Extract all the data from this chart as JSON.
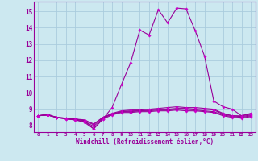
{
  "title": "Windchill (Refroidissement éolien,°C)",
  "bg_color": "#cce8f0",
  "grid_color": "#aaccdd",
  "line_color": "#990099",
  "marker_color": "#cc00cc",
  "ylim": [
    7.6,
    15.6
  ],
  "xlim": [
    -0.5,
    23.5
  ],
  "yticks": [
    8,
    9,
    10,
    11,
    12,
    13,
    14,
    15
  ],
  "xtick_labels": [
    "0",
    "1",
    "2",
    "3",
    "4",
    "5",
    "6",
    "7",
    "8",
    "9",
    "10",
    "11",
    "12",
    "13",
    "14",
    "15",
    "16",
    "17",
    "18",
    "19",
    "20",
    "21",
    "22",
    "23"
  ],
  "series": [
    [
      8.6,
      8.65,
      8.5,
      8.45,
      8.4,
      8.35,
      8.1,
      8.5,
      8.7,
      8.85,
      8.9,
      8.9,
      8.95,
      9.0,
      9.0,
      9.05,
      9.05,
      9.0,
      9.0,
      8.95,
      8.7,
      8.6,
      8.55,
      8.65
    ],
    [
      8.6,
      8.65,
      8.5,
      8.45,
      8.4,
      8.3,
      8.05,
      8.5,
      8.75,
      8.9,
      8.95,
      8.95,
      9.0,
      9.05,
      9.1,
      9.15,
      9.1,
      9.1,
      9.05,
      9.0,
      8.75,
      8.6,
      8.6,
      8.7
    ],
    [
      8.6,
      8.65,
      8.5,
      8.4,
      8.35,
      8.25,
      7.95,
      8.45,
      8.7,
      8.85,
      8.85,
      8.9,
      8.9,
      8.95,
      8.95,
      9.0,
      9.0,
      8.95,
      8.9,
      8.85,
      8.65,
      8.55,
      8.5,
      8.6
    ],
    [
      8.6,
      8.65,
      8.5,
      8.4,
      8.35,
      8.2,
      7.8,
      8.4,
      8.65,
      8.8,
      8.8,
      8.85,
      8.85,
      8.9,
      8.9,
      8.95,
      8.9,
      8.9,
      8.85,
      8.8,
      8.6,
      8.5,
      8.45,
      8.55
    ],
    [
      8.6,
      8.7,
      8.5,
      8.45,
      8.4,
      8.3,
      7.8,
      8.4,
      9.1,
      10.5,
      11.85,
      13.85,
      13.55,
      15.1,
      14.3,
      15.2,
      15.15,
      13.8,
      12.25,
      9.5,
      9.15,
      9.0,
      8.6,
      8.75
    ]
  ]
}
